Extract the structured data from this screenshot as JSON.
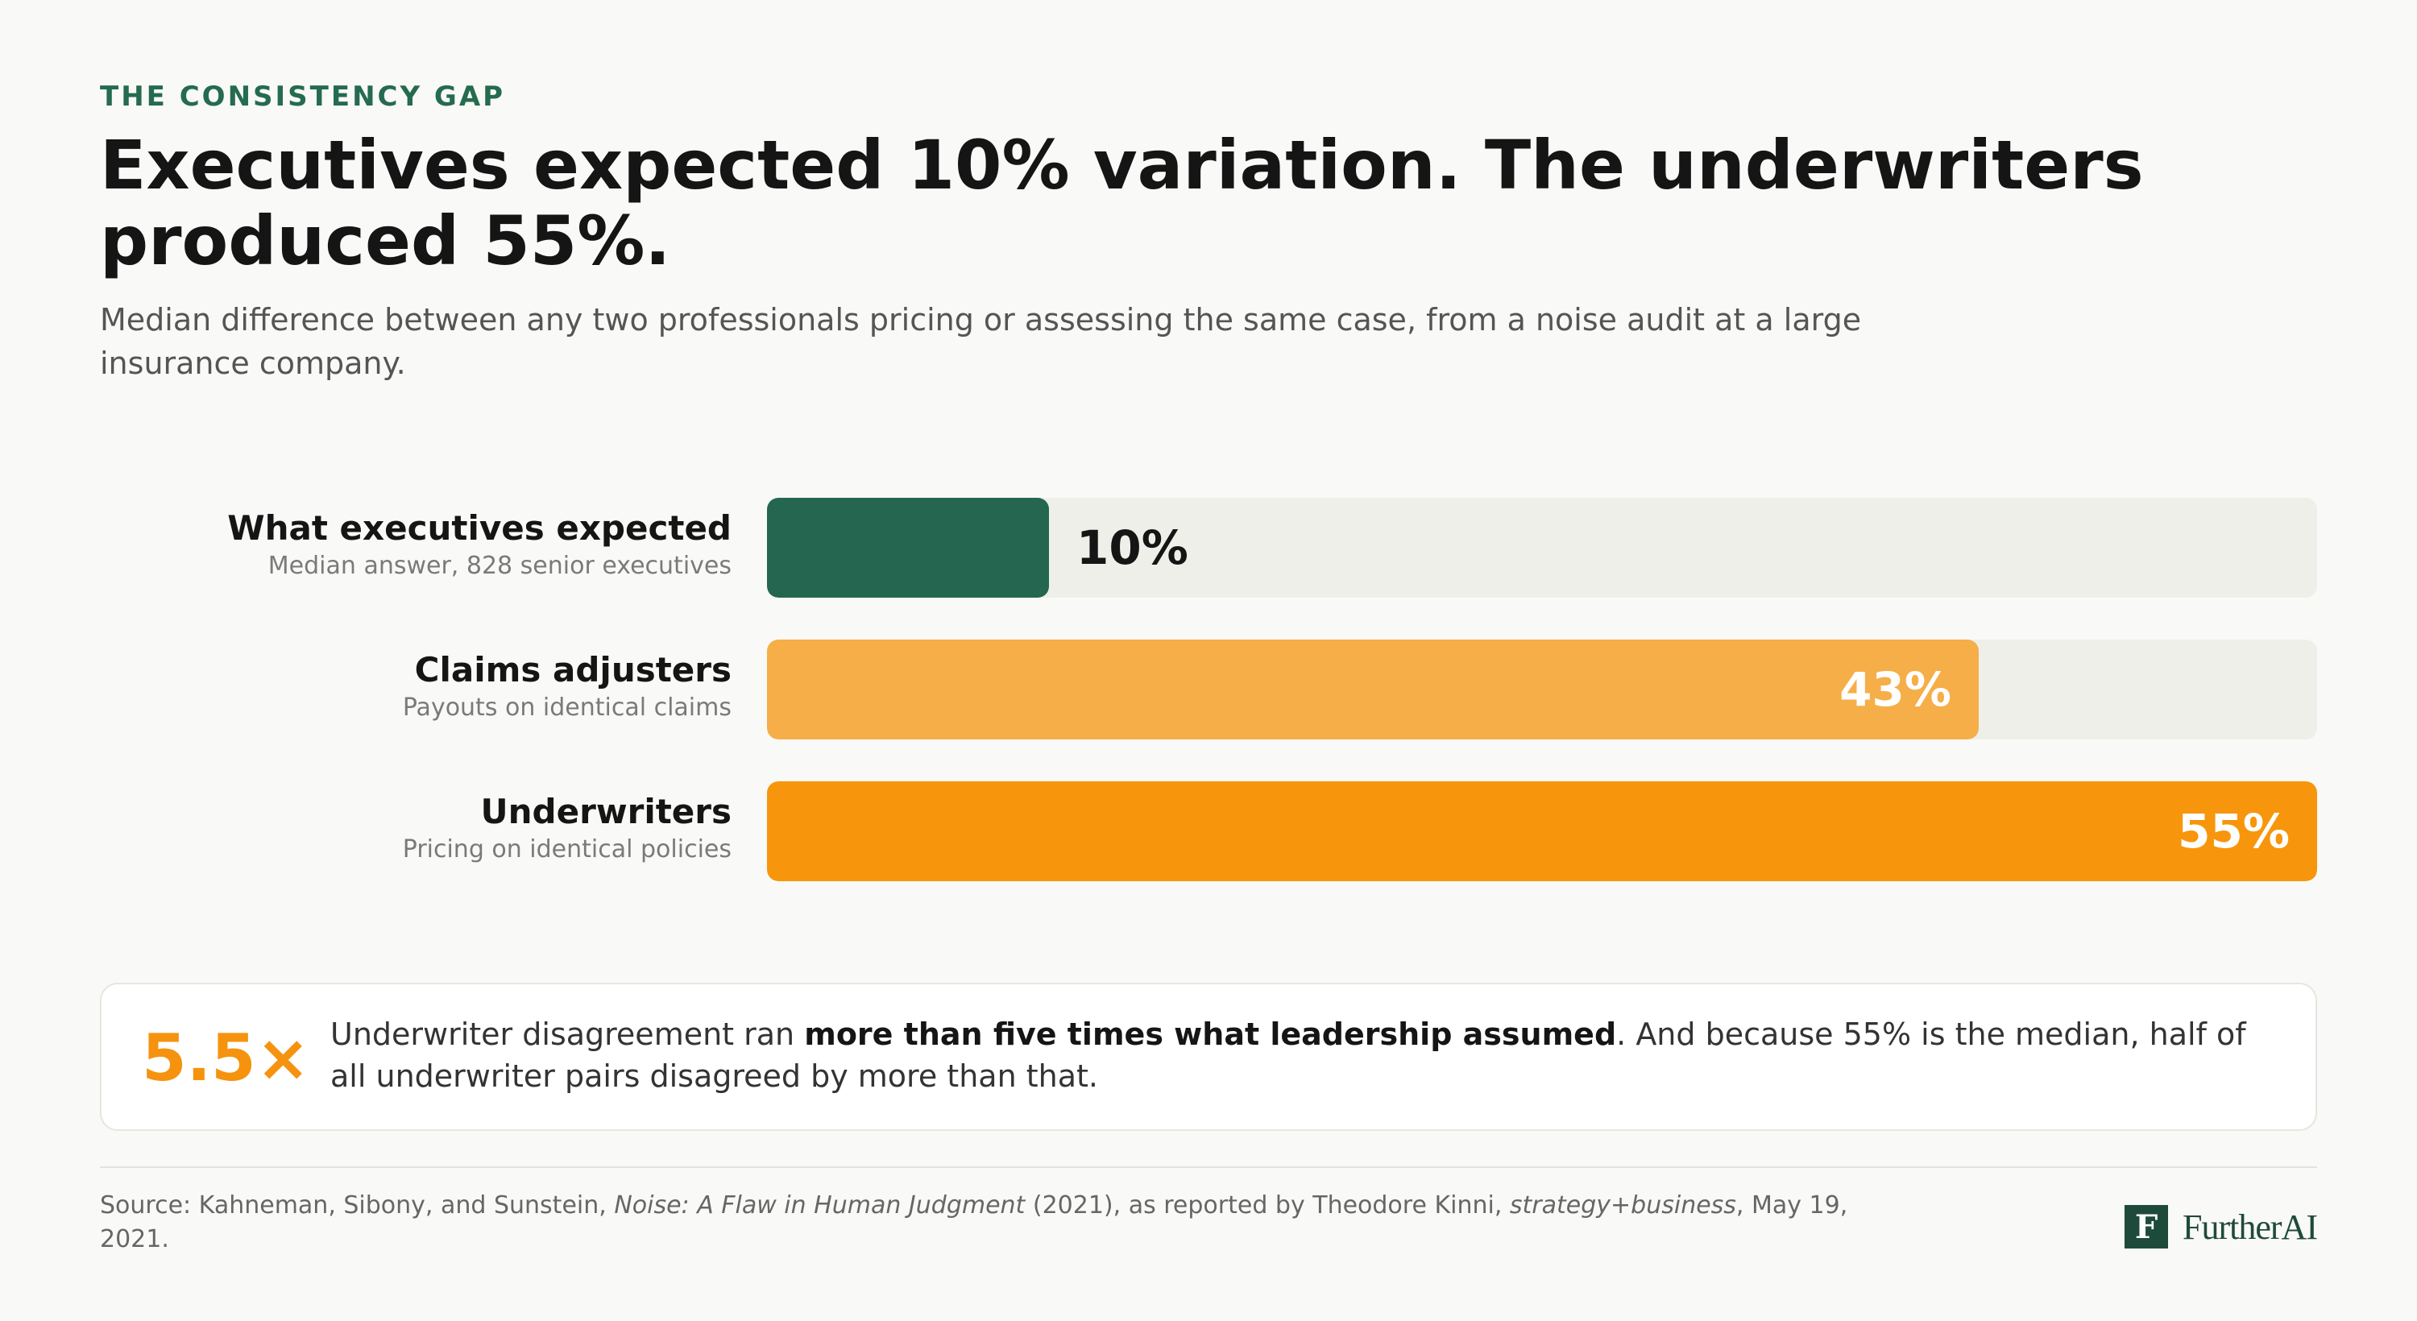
{
  "header": {
    "eyebrow": "THE CONSISTENCY GAP",
    "title": "Executives expected 10% variation. The underwriters produced 55%.",
    "subtitle": "Median difference between any two professionals pricing or assessing the same case, from a noise audit at a large insurance company."
  },
  "chart_data": {
    "type": "bar",
    "orientation": "horizontal",
    "categories": [
      "What executives expected",
      "Claims adjusters",
      "Underwriters"
    ],
    "values": [
      10,
      43,
      55
    ],
    "unit": "%",
    "xlim": [
      0,
      55
    ],
    "grid": false,
    "rows": [
      {
        "label": "What executives expected",
        "sublabel": "Median answer, 828 senior executives",
        "value": 10,
        "value_label": "10%",
        "color": "#256650"
      },
      {
        "label": "Claims adjusters",
        "sublabel": "Payouts on identical claims",
        "value": 43,
        "value_label": "43%",
        "color": "#f6ae48"
      },
      {
        "label": "Underwriters",
        "sublabel": "Pricing on identical policies",
        "value": 55,
        "value_label": "55%",
        "color": "#f7960c"
      }
    ]
  },
  "callout": {
    "figure": "5.5×",
    "text_before": "Underwriter disagreement ran ",
    "text_bold": "more than five times what leadership assumed",
    "text_after": ". And because 55% is the median, half of all underwriter pairs disagreed by more than that."
  },
  "footer": {
    "source_prefix": "Source: Kahneman, Sibony, and Sunstein, ",
    "book_title": "Noise: A Flaw in Human Judgment",
    "source_middle": " (2021), as reported by Theodore Kinni, ",
    "publication": "strategy+business",
    "source_suffix": ", May 19, 2021.",
    "logo_mark": "F",
    "logo_text": "FurtherAI"
  },
  "colors": {
    "accent_green": "#256b50",
    "accent_orange": "#f5930f",
    "track": "#efefea"
  }
}
